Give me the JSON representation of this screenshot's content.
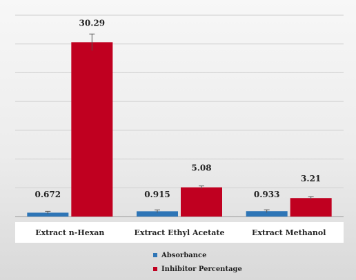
{
  "chart_data": {
    "type": "bar",
    "title": "",
    "xlabel": "",
    "ylabel": "",
    "categories": [
      "Extract n-Hexan",
      "Extract Ethyl Acetate",
      "Extract Methanol"
    ],
    "series": [
      {
        "name": "Absorbance",
        "color": "#2e75b6",
        "values": [
          0.672,
          0.915,
          0.933
        ],
        "labels": [
          "0.672",
          "0.915",
          "0.933"
        ]
      },
      {
        "name": "Inhibitor Percentage",
        "color": "#c00020",
        "values": [
          30.29,
          5.08,
          3.21
        ],
        "labels": [
          "30.29",
          "5.08",
          "3.21"
        ]
      }
    ],
    "ylim": [
      0,
      35
    ],
    "grid": true,
    "error_bars": true,
    "legend_position": "bottom"
  }
}
